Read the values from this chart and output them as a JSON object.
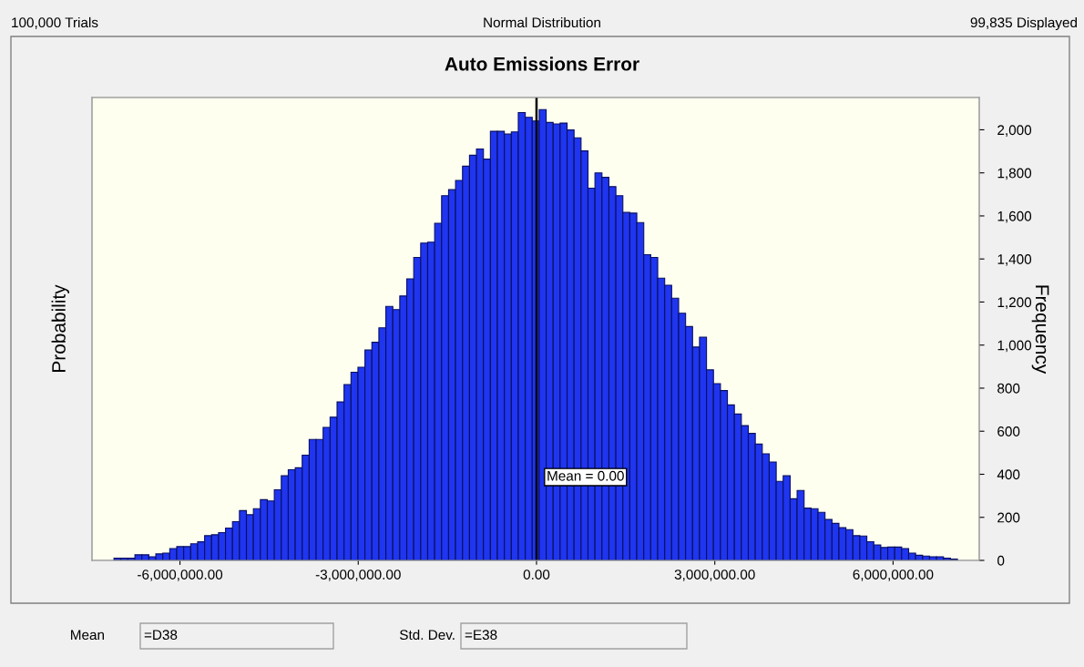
{
  "chart_data": {
    "type": "histogram",
    "title": "Auto Emissions Error",
    "ylabel": "Probability",
    "y2label": "Frequency",
    "bins": [
      -7110000,
      -6992700,
      -6875400,
      -6758100,
      -6640800,
      -6523500,
      -6406200,
      -6288900,
      -6171600,
      -6054300,
      -5937000,
      -5819700,
      -5702400,
      -5585100,
      -5467800,
      -5350500,
      -5233200,
      -5115900,
      -4998600,
      -4881300,
      -4764000,
      -4646700,
      -4529400,
      -4412100,
      -4294800,
      -4177500,
      -4060200,
      -3942900,
      -3825600,
      -3708300,
      -3591000,
      -3473700,
      -3356400,
      -3239100,
      -3121800,
      -3004500,
      -2887200,
      -2769900,
      -2652600,
      -2535300,
      -2418000,
      -2300700,
      -2183400,
      -2066100,
      -1948800,
      -1831500,
      -1714200,
      -1596900,
      -1479600,
      -1362300,
      -1245000,
      -1127700,
      -1010400,
      -893100,
      -775800,
      -658500,
      -541200,
      -423900,
      -306600,
      -189300,
      -72000,
      45300,
      162600,
      279900,
      397200,
      514500,
      631800,
      749100,
      866400,
      983700,
      1101000,
      1218300,
      1335600,
      1452900,
      1570200,
      1687500,
      1804800,
      1922100,
      2039400,
      2156700,
      2274000,
      2391300,
      2508600,
      2625900,
      2743200,
      2860500,
      2977800,
      3095100,
      3212400,
      3329700,
      3447000,
      3564300,
      3681600,
      3798900,
      3916200,
      4033500,
      4150800,
      4268100,
      4385400,
      4502700,
      4620000,
      4737300,
      4854600,
      4971900,
      5089200,
      5206500,
      5323800,
      5441100,
      5558400,
      5675700,
      5793000,
      5910300,
      6027600,
      6144900,
      6262200,
      6379500,
      6496800,
      6614100,
      6731400,
      6848700,
      6966000,
      7083300
    ],
    "series": [
      {
        "color": "#1f35f0",
        "axis": "y2",
        "values": [
          10,
          10,
          10,
          26,
          26,
          17,
          30,
          34,
          55,
          64,
          64,
          77,
          86,
          115,
          119,
          129,
          150,
          180,
          231,
          212,
          240,
          282,
          276,
          328,
          393,
          421,
          430,
          489,
          562,
          562,
          618,
          665,
          736,
          817,
          874,
          897,
          977,
          1013,
          1080,
          1180,
          1165,
          1228,
          1308,
          1407,
          1474,
          1478,
          1566,
          1694,
          1722,
          1765,
          1831,
          1882,
          1911,
          1864,
          1993,
          1993,
          1980,
          1990,
          2080,
          2058,
          2041,
          2094,
          2034,
          2027,
          2031,
          1999,
          1963,
          1902,
          1729,
          1800,
          1779,
          1736,
          1694,
          1616,
          1613,
          1569,
          1420,
          1407,
          1311,
          1278,
          1218,
          1148,
          1086,
          991,
          1037,
          885,
          821,
          789,
          722,
          680,
          626,
          590,
          540,
          495,
          457,
          367,
          393,
          286,
          325,
          243,
          240,
          223,
          190,
          172,
          152,
          143,
          115,
          113,
          87,
          72,
          60,
          62,
          62,
          55,
          34,
          24,
          20,
          17,
          17,
          10,
          6
        ]
      }
    ],
    "xlim": [
      -7480000,
      7450000
    ],
    "xticks": [
      {
        "value": -6000000,
        "label": "-6,000,000.00"
      },
      {
        "value": -3000000,
        "label": "-3,000,000.00"
      },
      {
        "value": 0,
        "label": "0.00"
      },
      {
        "value": 3000000,
        "label": "3,000,000.00"
      },
      {
        "value": 6000000,
        "label": "6,000,000.00"
      }
    ],
    "y2lim": [
      0,
      2150
    ],
    "y2ticks": [
      0,
      200,
      400,
      600,
      800,
      {
        "value": 1000,
        "label": "1,000"
      },
      {
        "value": 1200,
        "label": "1,200"
      },
      {
        "value": 1400,
        "label": "1,400"
      },
      {
        "value": 1600,
        "label": "1,600"
      },
      {
        "value": 1800,
        "label": "1,800"
      },
      {
        "value": 2000,
        "label": "2,000"
      }
    ],
    "ref_lines": [
      {
        "axis": "x",
        "value": 0,
        "label": "Mean = 0.00",
        "color": "#000000"
      }
    ],
    "annotations": [
      "100,000 Trials",
      "Normal Distribution",
      "99,835 Displayed",
      "Mean",
      "=D38",
      "Std. Dev.",
      "=E38"
    ],
    "grid": false,
    "legend": false
  }
}
